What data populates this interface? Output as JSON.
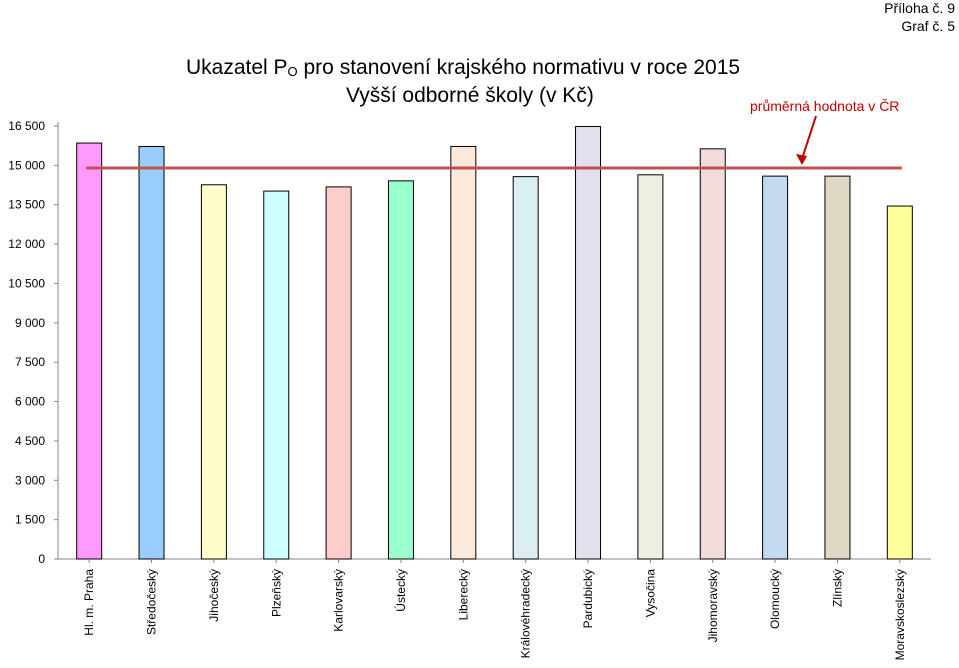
{
  "header": {
    "attachment": "Příloha č. 9",
    "graph_number": "Graf č. 5"
  },
  "chart_data": {
    "type": "bar",
    "title_main": "Ukazatel P",
    "title_sub": "O",
    "title_rest": " pro stanovení krajského normativu v roce 2015",
    "subtitle": "Vyšší odborné školy (v Kč)",
    "xlabel": "",
    "ylabel": "",
    "ylim": [
      0,
      16500
    ],
    "yticks": [
      0,
      1500,
      3000,
      4500,
      6000,
      7500,
      9000,
      10500,
      12000,
      13500,
      15000,
      16500
    ],
    "ytick_labels": [
      "0",
      "1 500",
      "3 000",
      "4 500",
      "6 000",
      "7 500",
      "9 000",
      "10 500",
      "12 000",
      "13 500",
      "15 000",
      "16 500"
    ],
    "categories": [
      "Hl. m. Praha",
      "Středočeský",
      "Jihočeský",
      "Plzeňský",
      "Karlovarský",
      "Ústecký",
      "Liberecký",
      "Královéhradecký",
      "Pardubický",
      "Vysočina",
      "Jihomoravský",
      "Olomoucký",
      "Zlínský",
      "Moravskoslezský"
    ],
    "values": [
      15850,
      15720,
      14260,
      14020,
      14180,
      14410,
      15720,
      14570,
      16480,
      14640,
      15630,
      14590,
      14590,
      13450
    ],
    "colors": [
      "#ff99ff",
      "#99ccff",
      "#ffffcc",
      "#ccffff",
      "#ffcccc",
      "#99ffcc",
      "#fde9d9",
      "#daeef3",
      "#e4dfec",
      "#ebf1de",
      "#f2dcdb",
      "#c5d9f1",
      "#ddd9c4",
      "#ffff99"
    ],
    "reference_line": {
      "label": "průměrná hodnota v ČR",
      "value": 14900,
      "color": "#c0504d"
    },
    "grid": false,
    "legend": "none"
  }
}
